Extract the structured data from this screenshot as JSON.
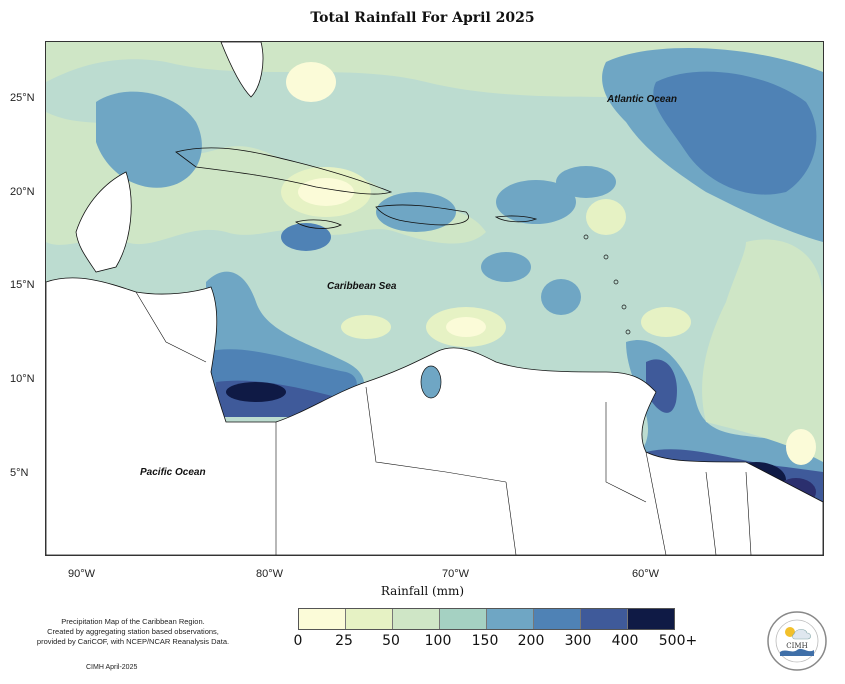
{
  "title": "Total Rainfall For April 2025",
  "axes": {
    "lat_labels": [
      "25°N",
      "20°N",
      "15°N",
      "10°N",
      "5°N"
    ],
    "lon_labels": [
      "90°W",
      "80°W",
      "70°W",
      "60°W"
    ]
  },
  "ocean_labels": {
    "atlantic": "Atlantic Ocean",
    "caribbean": "Caribbean Sea",
    "pacific": "Pacific Ocean"
  },
  "legend": {
    "title": "Rainfall (mm)",
    "ticks": [
      "0",
      "25",
      "50",
      "100",
      "150",
      "200",
      "300",
      "400",
      "500+"
    ],
    "colors": [
      "#fbfbd8",
      "#e6f2c4",
      "#cfe6c6",
      "#a5d1c2",
      "#6fa6c4",
      "#4f82b5",
      "#3f5a9a",
      "#2b2f6e",
      "#0f1a45"
    ]
  },
  "note": {
    "line1": "Precipitation Map of the Caribbean Region.",
    "line2": "Created by aggregating station based observations,",
    "line3": "provided by CariCOF, with NCEP/NCAR Reanalysis Data."
  },
  "credit": "CIMH April-2025",
  "logo_text": "CIMH"
}
